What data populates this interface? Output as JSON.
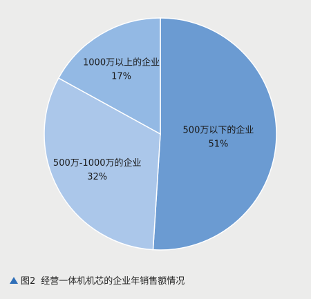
{
  "chart_data": {
    "type": "pie",
    "categories": [
      "500万以下的企业",
      "500万-1000万的企业",
      "1000万以上的企业"
    ],
    "values": [
      51,
      32,
      17
    ],
    "value_labels": [
      "51%",
      "32%",
      "17%"
    ],
    "colors": [
      "#6b9bd2",
      "#abc7ea",
      "#93b9e4"
    ],
    "start": "12 o'clock, clockwise",
    "legend": "none"
  },
  "caption": {
    "icon": "triangle-up-icon",
    "icon_color": "#2f6fb8",
    "figure_number": "图2",
    "text": "经营一体机机芯的企业年销售额情况"
  }
}
